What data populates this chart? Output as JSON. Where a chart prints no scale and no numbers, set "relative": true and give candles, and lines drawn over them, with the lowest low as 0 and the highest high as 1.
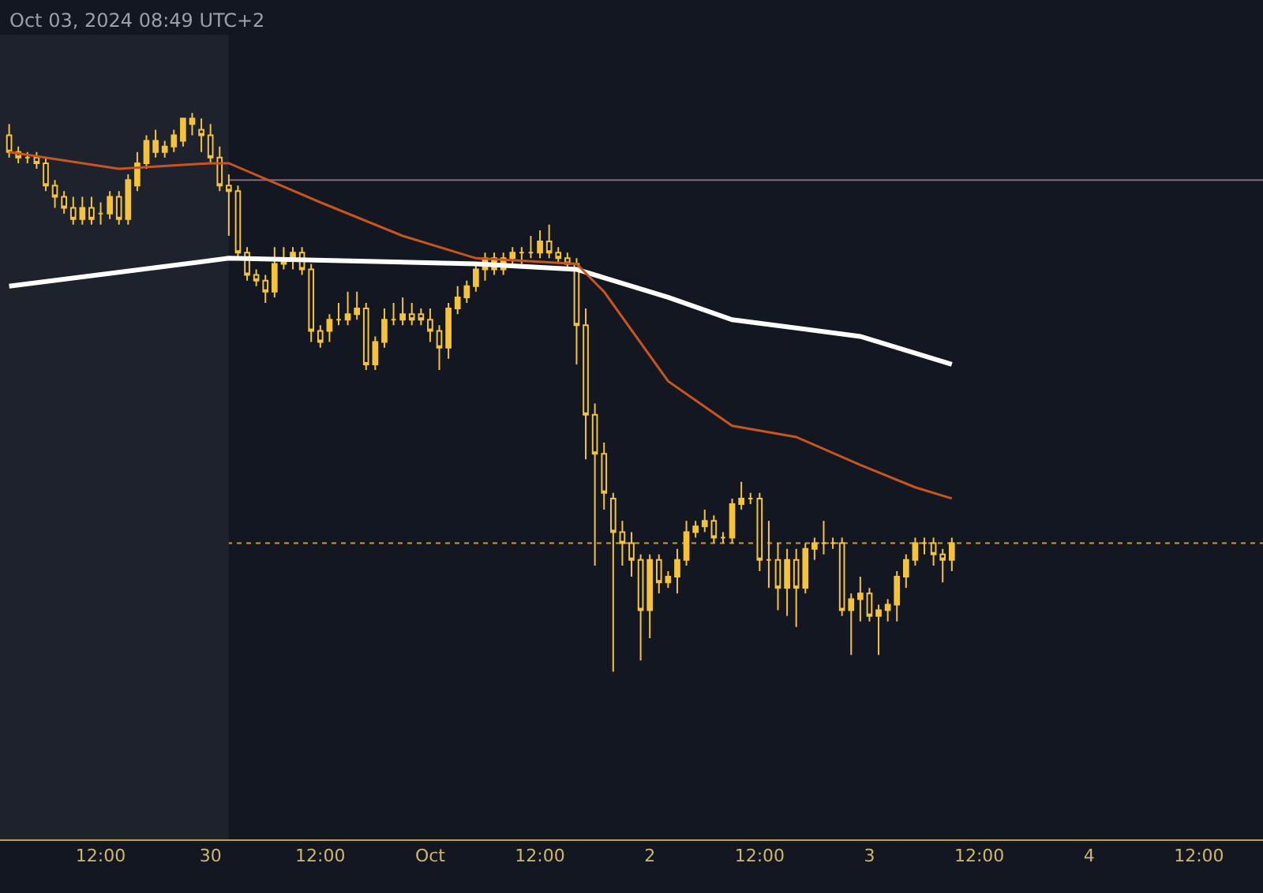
{
  "chart_data": {
    "type": "candlestick",
    "relative": true,
    "color": "#f5c33b",
    "annotations": [
      "Oct 03, 2024 08:49 UTC+2"
    ],
    "xlim": [
      "2024-09-29T01:00",
      "2024-10-04T19:00"
    ],
    "xticks": [
      {
        "value": "2024-09-29T12:00",
        "label": "12:00"
      },
      {
        "value": "2024-09-30T00:00",
        "label": "30"
      },
      {
        "value": "2024-09-30T12:00",
        "label": "12:00"
      },
      {
        "value": "2024-10-01T00:00",
        "label": "Oct"
      },
      {
        "value": "2024-10-01T12:00",
        "label": "12:00"
      },
      {
        "value": "2024-10-02T00:00",
        "label": "2"
      },
      {
        "value": "2024-10-02T12:00",
        "label": "12:00"
      },
      {
        "value": "2024-10-03T00:00",
        "label": "3"
      },
      {
        "value": "2024-10-03T12:00",
        "label": "12:00"
      },
      {
        "value": "2024-10-04T00:00",
        "label": "4"
      },
      {
        "value": "2024-10-04T12:00",
        "label": "12:00"
      }
    ],
    "x": [
      "2024-09-29T02:00",
      "2024-09-29T03:00",
      "2024-09-29T04:00",
      "2024-09-29T05:00",
      "2024-09-29T06:00",
      "2024-09-29T07:00",
      "2024-09-29T08:00",
      "2024-09-29T09:00",
      "2024-09-29T10:00",
      "2024-09-29T11:00",
      "2024-09-29T12:00",
      "2024-09-29T13:00",
      "2024-09-29T14:00",
      "2024-09-29T15:00",
      "2024-09-29T16:00",
      "2024-09-29T17:00",
      "2024-09-29T18:00",
      "2024-09-29T19:00",
      "2024-09-29T20:00",
      "2024-09-29T21:00",
      "2024-09-29T22:00",
      "2024-09-29T23:00",
      "2024-09-30T00:00",
      "2024-09-30T01:00",
      "2024-09-30T02:00",
      "2024-09-30T03:00",
      "2024-09-30T04:00",
      "2024-09-30T05:00",
      "2024-09-30T06:00",
      "2024-09-30T07:00",
      "2024-09-30T08:00",
      "2024-09-30T09:00",
      "2024-09-30T10:00",
      "2024-09-30T11:00",
      "2024-09-30T12:00",
      "2024-09-30T13:00",
      "2024-09-30T14:00",
      "2024-09-30T15:00",
      "2024-09-30T16:00",
      "2024-09-30T17:00",
      "2024-09-30T18:00",
      "2024-09-30T19:00",
      "2024-09-30T20:00",
      "2024-09-30T21:00",
      "2024-09-30T22:00",
      "2024-09-30T23:00",
      "2024-10-01T00:00",
      "2024-10-01T01:00",
      "2024-10-01T02:00",
      "2024-10-01T03:00",
      "2024-10-01T04:00",
      "2024-10-01T05:00",
      "2024-10-01T06:00",
      "2024-10-01T07:00",
      "2024-10-01T08:00",
      "2024-10-01T09:00",
      "2024-10-01T10:00",
      "2024-10-01T11:00",
      "2024-10-01T12:00",
      "2024-10-01T13:00",
      "2024-10-01T14:00",
      "2024-10-01T15:00",
      "2024-10-01T16:00",
      "2024-10-01T17:00",
      "2024-10-01T18:00",
      "2024-10-01T19:00",
      "2024-10-01T20:00",
      "2024-10-01T21:00",
      "2024-10-01T22:00",
      "2024-10-01T23:00",
      "2024-10-02T00:00",
      "2024-10-02T01:00",
      "2024-10-02T02:00",
      "2024-10-02T03:00",
      "2024-10-02T04:00",
      "2024-10-02T05:00",
      "2024-10-02T06:00",
      "2024-10-02T07:00",
      "2024-10-02T08:00",
      "2024-10-02T09:00",
      "2024-10-02T10:00",
      "2024-10-02T11:00",
      "2024-10-02T12:00",
      "2024-10-02T13:00",
      "2024-10-02T14:00",
      "2024-10-02T15:00",
      "2024-10-02T16:00",
      "2024-10-02T17:00",
      "2024-10-02T18:00",
      "2024-10-02T19:00",
      "2024-10-02T20:00",
      "2024-10-02T21:00",
      "2024-10-02T22:00",
      "2024-10-02T23:00",
      "2024-10-03T00:00",
      "2024-10-03T01:00",
      "2024-10-03T02:00",
      "2024-10-03T03:00",
      "2024-10-03T04:00",
      "2024-10-03T05:00",
      "2024-10-03T06:00",
      "2024-10-03T07:00",
      "2024-10-03T08:00",
      "2024-10-03T09:00"
    ],
    "ohlc": [
      [
        0.96,
        0.98,
        0.92,
        0.93
      ],
      [
        0.93,
        0.94,
        0.91,
        0.92
      ],
      [
        0.92,
        0.93,
        0.91,
        0.92
      ],
      [
        0.92,
        0.93,
        0.9,
        0.91
      ],
      [
        0.91,
        0.92,
        0.86,
        0.87
      ],
      [
        0.87,
        0.88,
        0.83,
        0.85
      ],
      [
        0.85,
        0.86,
        0.82,
        0.83
      ],
      [
        0.83,
        0.85,
        0.8,
        0.81
      ],
      [
        0.81,
        0.85,
        0.8,
        0.83
      ],
      [
        0.83,
        0.85,
        0.8,
        0.81
      ],
      [
        0.82,
        0.84,
        0.8,
        0.82
      ],
      [
        0.82,
        0.86,
        0.81,
        0.85
      ],
      [
        0.85,
        0.86,
        0.8,
        0.81
      ],
      [
        0.81,
        0.89,
        0.8,
        0.88
      ],
      [
        0.87,
        0.93,
        0.86,
        0.91
      ],
      [
        0.91,
        0.96,
        0.9,
        0.95
      ],
      [
        0.93,
        0.97,
        0.92,
        0.95
      ],
      [
        0.93,
        0.95,
        0.92,
        0.94
      ],
      [
        0.94,
        0.97,
        0.93,
        0.96
      ],
      [
        0.95,
        0.99,
        0.94,
        0.99
      ],
      [
        0.98,
        1.0,
        0.96,
        0.99
      ],
      [
        0.97,
        0.99,
        0.93,
        0.96
      ],
      [
        0.96,
        0.98,
        0.91,
        0.92
      ],
      [
        0.92,
        0.94,
        0.86,
        0.87
      ],
      [
        0.87,
        0.89,
        0.78,
        0.86
      ],
      [
        0.86,
        0.87,
        0.74,
        0.75
      ],
      [
        0.75,
        0.76,
        0.7,
        0.71
      ],
      [
        0.71,
        0.72,
        0.69,
        0.7
      ],
      [
        0.7,
        0.71,
        0.66,
        0.68
      ],
      [
        0.68,
        0.76,
        0.67,
        0.73
      ],
      [
        0.73,
        0.76,
        0.72,
        0.74
      ],
      [
        0.74,
        0.76,
        0.72,
        0.75
      ],
      [
        0.75,
        0.76,
        0.71,
        0.72
      ],
      [
        0.72,
        0.73,
        0.59,
        0.61
      ],
      [
        0.61,
        0.62,
        0.58,
        0.59
      ],
      [
        0.61,
        0.64,
        0.59,
        0.63
      ],
      [
        0.63,
        0.66,
        0.62,
        0.63
      ],
      [
        0.63,
        0.68,
        0.62,
        0.64
      ],
      [
        0.64,
        0.68,
        0.63,
        0.65
      ],
      [
        0.65,
        0.66,
        0.54,
        0.55
      ],
      [
        0.55,
        0.6,
        0.54,
        0.59
      ],
      [
        0.59,
        0.65,
        0.58,
        0.63
      ],
      [
        0.63,
        0.66,
        0.62,
        0.63
      ],
      [
        0.63,
        0.67,
        0.62,
        0.64
      ],
      [
        0.64,
        0.66,
        0.62,
        0.63
      ],
      [
        0.64,
        0.65,
        0.62,
        0.63
      ],
      [
        0.63,
        0.65,
        0.59,
        0.61
      ],
      [
        0.61,
        0.62,
        0.54,
        0.58
      ],
      [
        0.58,
        0.66,
        0.56,
        0.65
      ],
      [
        0.65,
        0.69,
        0.64,
        0.67
      ],
      [
        0.67,
        0.7,
        0.66,
        0.69
      ],
      [
        0.69,
        0.73,
        0.68,
        0.72
      ],
      [
        0.72,
        0.75,
        0.7,
        0.74
      ],
      [
        0.72,
        0.75,
        0.71,
        0.74
      ],
      [
        0.72,
        0.75,
        0.71,
        0.74
      ],
      [
        0.74,
        0.76,
        0.73,
        0.75
      ],
      [
        0.75,
        0.76,
        0.73,
        0.75
      ],
      [
        0.75,
        0.78,
        0.74,
        0.75
      ],
      [
        0.75,
        0.79,
        0.74,
        0.77
      ],
      [
        0.77,
        0.8,
        0.74,
        0.75
      ],
      [
        0.75,
        0.76,
        0.73,
        0.74
      ],
      [
        0.74,
        0.75,
        0.72,
        0.73
      ],
      [
        0.73,
        0.74,
        0.55,
        0.62
      ],
      [
        0.62,
        0.65,
        0.38,
        0.46
      ],
      [
        0.46,
        0.48,
        0.19,
        0.39
      ],
      [
        0.39,
        0.41,
        0.29,
        0.32
      ],
      [
        0.31,
        0.32,
        0.0,
        0.25
      ],
      [
        0.25,
        0.27,
        0.19,
        0.23
      ],
      [
        0.23,
        0.25,
        0.17,
        0.2
      ],
      [
        0.2,
        0.21,
        0.02,
        0.11
      ],
      [
        0.11,
        0.21,
        0.06,
        0.2
      ],
      [
        0.2,
        0.21,
        0.14,
        0.16
      ],
      [
        0.16,
        0.18,
        0.15,
        0.17
      ],
      [
        0.17,
        0.22,
        0.14,
        0.2
      ],
      [
        0.2,
        0.27,
        0.19,
        0.25
      ],
      [
        0.25,
        0.27,
        0.24,
        0.26
      ],
      [
        0.26,
        0.29,
        0.25,
        0.27
      ],
      [
        0.27,
        0.28,
        0.23,
        0.24
      ],
      [
        0.24,
        0.25,
        0.23,
        0.24
      ],
      [
        0.24,
        0.31,
        0.23,
        0.3
      ],
      [
        0.3,
        0.34,
        0.29,
        0.31
      ],
      [
        0.31,
        0.32,
        0.3,
        0.31
      ],
      [
        0.31,
        0.32,
        0.18,
        0.2
      ],
      [
        0.2,
        0.27,
        0.15,
        0.2
      ],
      [
        0.2,
        0.23,
        0.11,
        0.15
      ],
      [
        0.15,
        0.22,
        0.1,
        0.2
      ],
      [
        0.2,
        0.22,
        0.08,
        0.15
      ],
      [
        0.15,
        0.23,
        0.14,
        0.22
      ],
      [
        0.22,
        0.24,
        0.2,
        0.23
      ],
      [
        0.23,
        0.27,
        0.21,
        0.23
      ],
      [
        0.23,
        0.24,
        0.22,
        0.23
      ],
      [
        0.23,
        0.24,
        0.1,
        0.11
      ],
      [
        0.11,
        0.14,
        0.03,
        0.13
      ],
      [
        0.13,
        0.17,
        0.09,
        0.14
      ],
      [
        0.14,
        0.15,
        0.09,
        0.1
      ],
      [
        0.1,
        0.12,
        0.03,
        0.11
      ],
      [
        0.11,
        0.13,
        0.09,
        0.12
      ],
      [
        0.12,
        0.18,
        0.09,
        0.17
      ],
      [
        0.17,
        0.21,
        0.15,
        0.2
      ],
      [
        0.2,
        0.24,
        0.19,
        0.23
      ],
      [
        0.23,
        0.24,
        0.21,
        0.23
      ],
      [
        0.23,
        0.24,
        0.19,
        0.21
      ],
      [
        0.21,
        0.22,
        0.16,
        0.2
      ],
      [
        0.2,
        0.24,
        0.18,
        0.23
      ]
    ],
    "series": [
      {
        "type": "line",
        "color": "#ffffff",
        "x": [
          "2024-09-29T02:00",
          "2024-09-30T02:00",
          "2024-10-01T05:00",
          "2024-10-01T16:00",
          "2024-10-02T02:00",
          "2024-10-02T09:00",
          "2024-10-02T23:00",
          "2024-10-03T09:00"
        ],
        "values": [
          0.69,
          0.74,
          0.73,
          0.72,
          0.67,
          0.63,
          0.6,
          0.55
        ]
      },
      {
        "type": "line",
        "color": "#c8551e",
        "x": [
          "2024-09-29T02:00",
          "2024-09-29T14:00",
          "2024-09-30T00:00",
          "2024-09-30T02:00",
          "2024-09-30T12:00",
          "2024-09-30T21:00",
          "2024-10-01T05:00",
          "2024-10-01T16:00",
          "2024-10-01T19:00",
          "2024-10-02T02:00",
          "2024-10-02T09:00",
          "2024-10-02T16:00",
          "2024-10-02T23:00",
          "2024-10-03T05:00",
          "2024-10-03T09:00"
        ],
        "values": [
          0.93,
          0.9,
          0.91,
          0.91,
          0.84,
          0.78,
          0.74,
          0.73,
          0.68,
          0.52,
          0.44,
          0.42,
          0.37,
          0.33,
          0.31
        ]
      }
    ],
    "ref_lines": [
      {
        "axis": "y",
        "value": 0.88,
        "color": "#8a6a7a",
        "line_style": "solid"
      },
      {
        "axis": "y",
        "value": 0.23,
        "color": "#c89a3c",
        "line_style": "dotted"
      }
    ],
    "bands": [
      {
        "axis": "x",
        "from": "2024-09-29T01:00",
        "to": "2024-09-30T02:00",
        "color": "#1e222d"
      }
    ]
  }
}
